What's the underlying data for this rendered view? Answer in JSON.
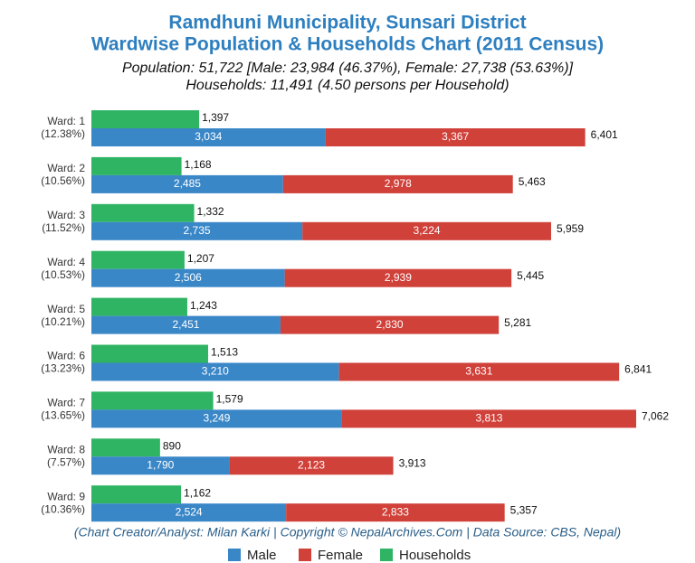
{
  "chart_data": {
    "type": "bar",
    "orientation": "horizontal",
    "title": "Ramdhuni Municipality, Sunsari District",
    "title_line2": "Wardwise Population & Households Chart (2011 Census)",
    "subtitle": "Population: 51,722 [Male: 23,984 (46.37%), Female: 27,738 (53.63%)]",
    "subtitle_line2": "Households: 11,491 (4.50 persons per Household)",
    "footer": "(Chart Creator/Analyst: Milan Karki | Copyright © NepalArchives.Com | Data Source: CBS, Nepal)",
    "categories": [
      "Ward: 1",
      "Ward: 2",
      "Ward: 3",
      "Ward: 4",
      "Ward: 5",
      "Ward: 6",
      "Ward: 7",
      "Ward: 8",
      "Ward: 9"
    ],
    "category_shares": [
      "(12.38%)",
      "(10.56%)",
      "(11.52%)",
      "(10.53%)",
      "(10.21%)",
      "(13.23%)",
      "(13.65%)",
      "(7.57%)",
      "(10.36%)"
    ],
    "series": [
      {
        "name": "Male",
        "color": "#3a87c8",
        "stack": "population",
        "values": [
          3034,
          2485,
          2735,
          2506,
          2451,
          3210,
          3249,
          1790,
          2524
        ],
        "value_labels": [
          "3,034",
          "2,485",
          "2,735",
          "2,506",
          "2,451",
          "3,210",
          "3,249",
          "1,790",
          "2,524"
        ]
      },
      {
        "name": "Female",
        "color": "#d0413a",
        "stack": "population",
        "values": [
          3367,
          2978,
          3224,
          2939,
          2830,
          3631,
          3813,
          2123,
          2833
        ],
        "value_labels": [
          "3,367",
          "2,978",
          "3,224",
          "2,939",
          "2,830",
          "3,631",
          "3,813",
          "2,123",
          "2,833"
        ]
      },
      {
        "name": "Households",
        "color": "#2eb462",
        "stack": "households",
        "values": [
          1397,
          1168,
          1332,
          1207,
          1243,
          1513,
          1579,
          890,
          1162
        ],
        "value_labels": [
          "1,397",
          "1,168",
          "1,332",
          "1,207",
          "1,243",
          "1,513",
          "1,579",
          "890",
          "1,162"
        ]
      }
    ],
    "totals": [
      6401,
      5463,
      5959,
      5445,
      5281,
      6841,
      7062,
      3913,
      5357
    ],
    "total_labels": [
      "6,401",
      "5,463",
      "5,959",
      "5,445",
      "5,281",
      "6,841",
      "7,062",
      "3,913",
      "5,357"
    ],
    "legend": "bottom"
  }
}
